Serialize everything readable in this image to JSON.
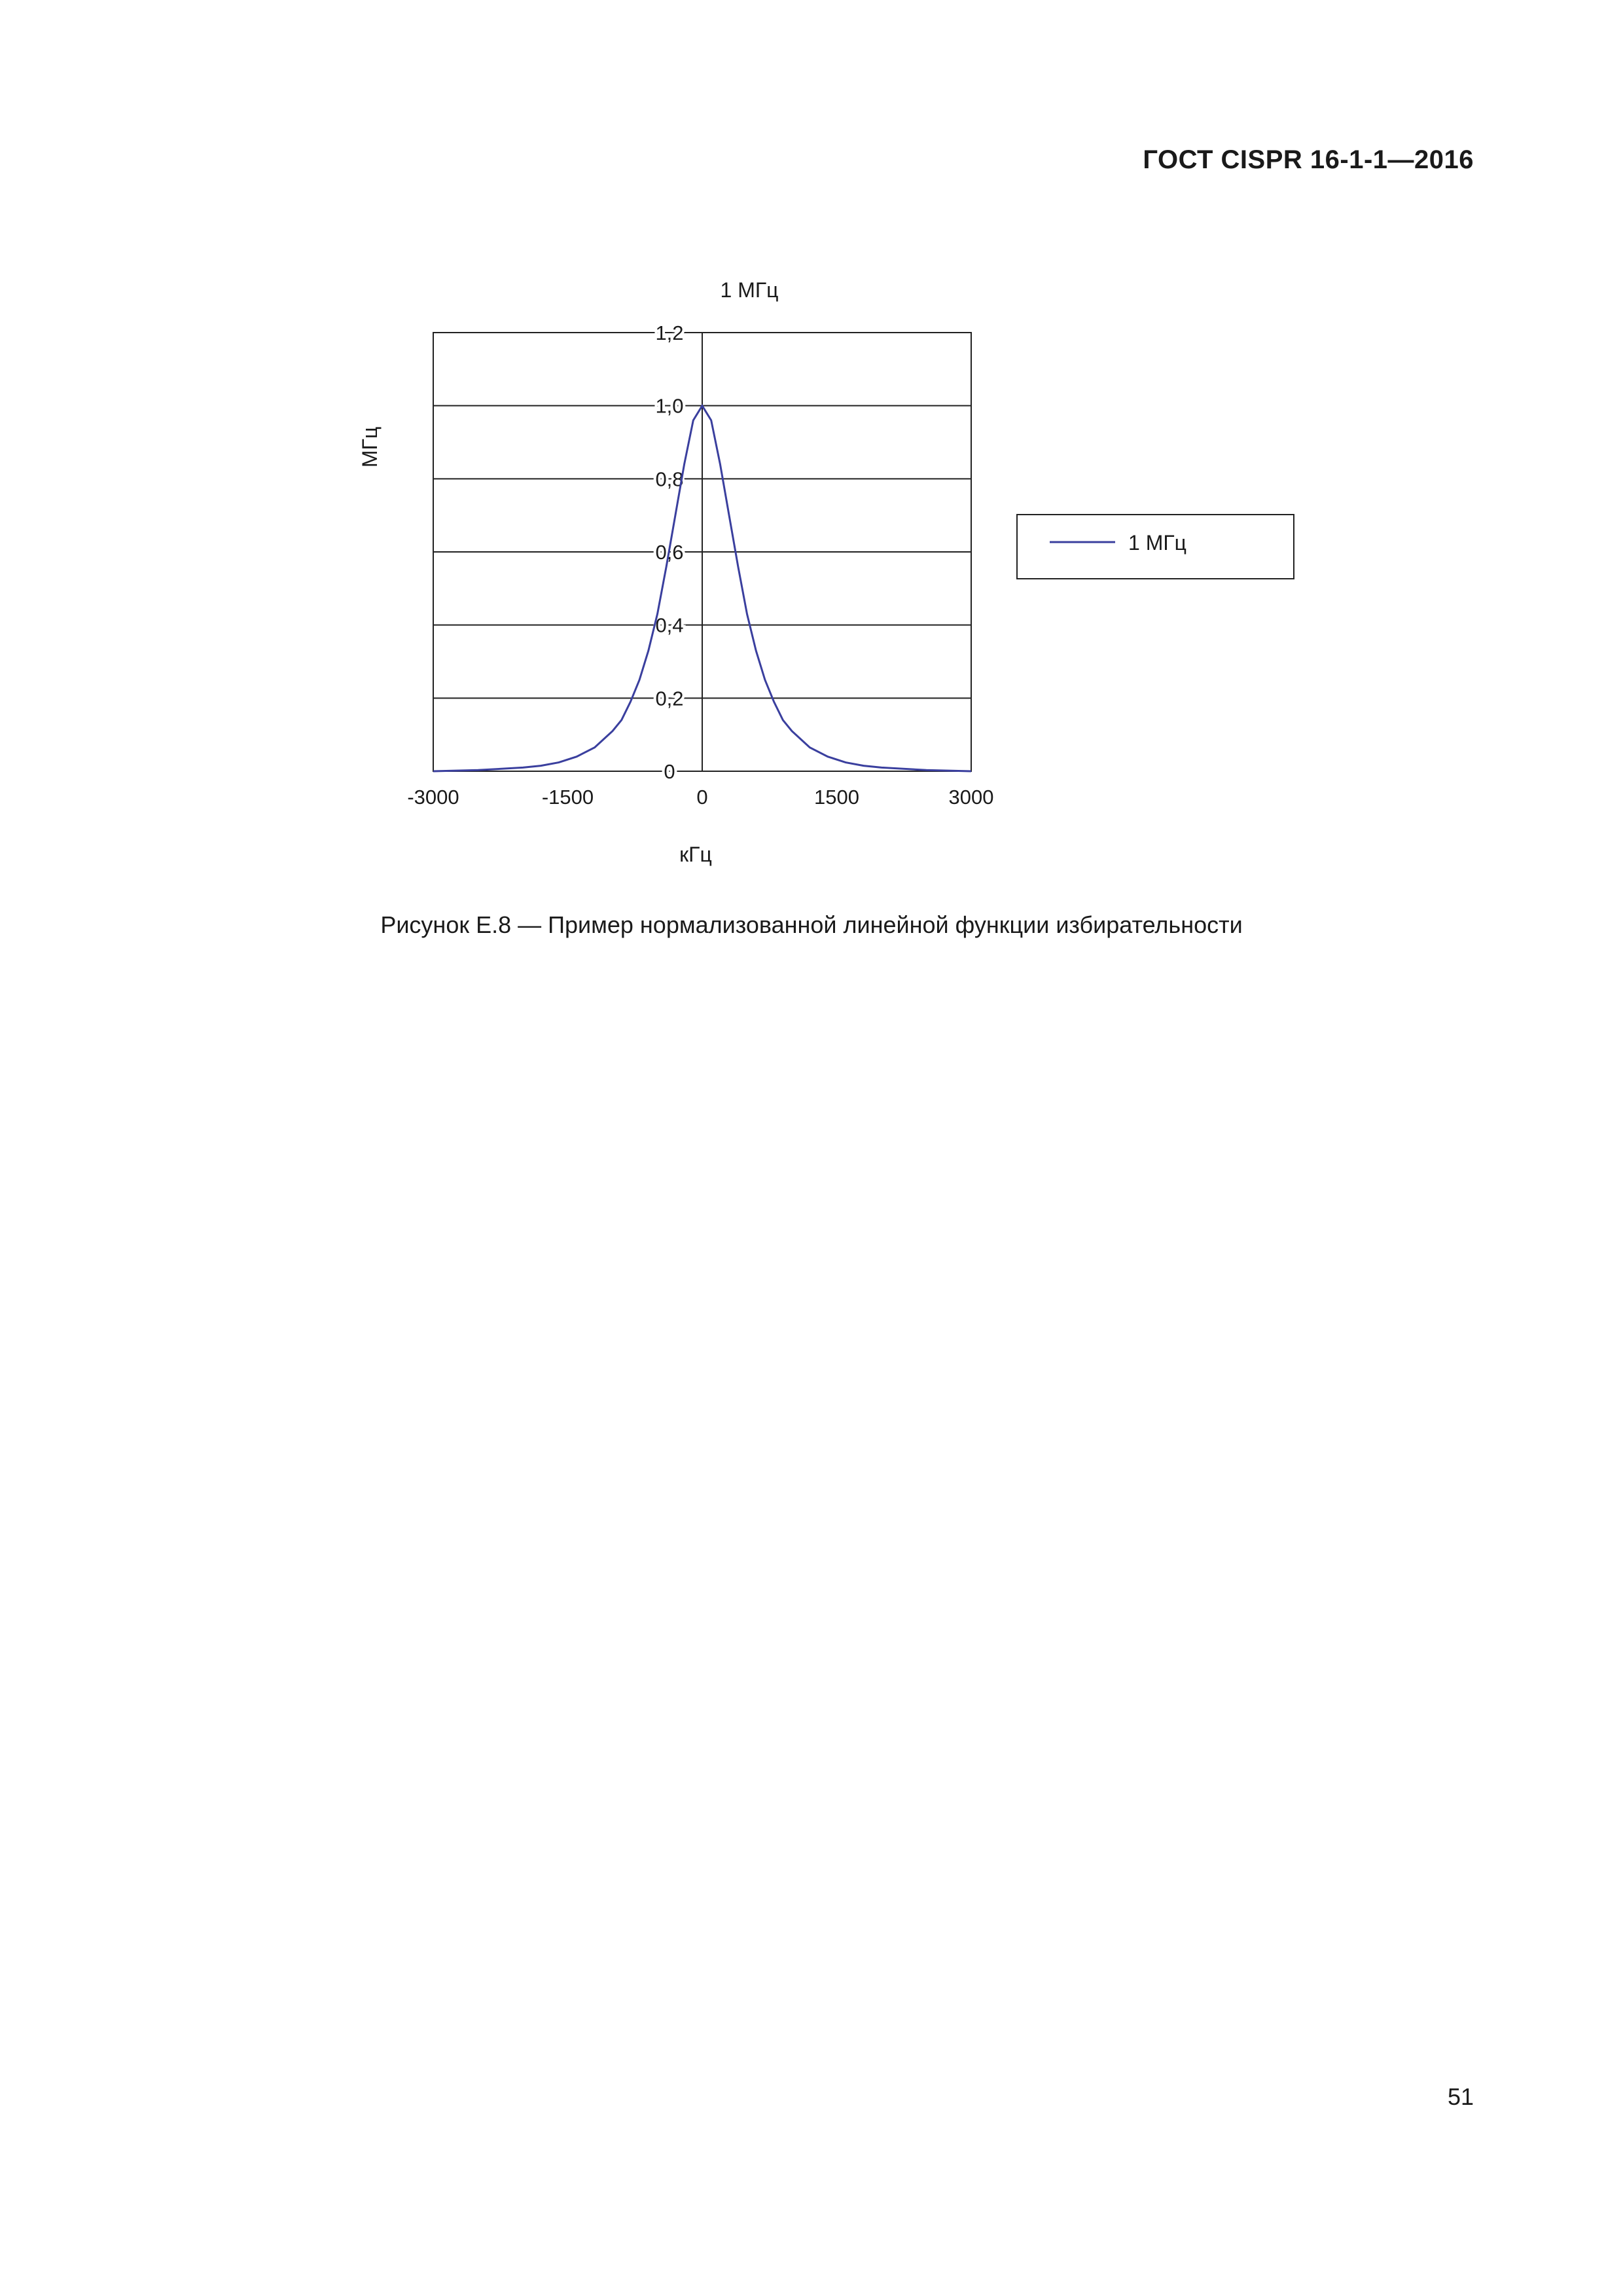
{
  "document": {
    "header": "ГОСТ CISPR 16-1-1—2016",
    "caption": "Рисунок Е.8 — Пример нормализованной линейной функции избирательности",
    "page_number": "51"
  },
  "chart_data": {
    "type": "line",
    "title": "1 МГц",
    "xlabel": "кГц",
    "ylabel": "МГц",
    "xlim": [
      -3000,
      3000
    ],
    "ylim": [
      0,
      1.2
    ],
    "x_ticks": [
      "-3000",
      "-1500",
      "0",
      "1500",
      "3000"
    ],
    "y_ticks": [
      "0",
      "0,2",
      "0,4",
      "0,6",
      "0,8",
      "1,0",
      "1,2"
    ],
    "grid": true,
    "legend_position": "right",
    "series": [
      {
        "name": "1 МГц",
        "color": "#3a3f9e",
        "x": [
          -3000,
          -2500,
          -2000,
          -1800,
          -1600,
          -1400,
          -1200,
          -1000,
          -900,
          -800,
          -700,
          -600,
          -500,
          -400,
          -300,
          -200,
          -100,
          0,
          100,
          200,
          300,
          400,
          500,
          600,
          700,
          800,
          900,
          1000,
          1200,
          1400,
          1600,
          1800,
          2000,
          2500,
          3000
        ],
        "y": [
          0.0,
          0.003,
          0.01,
          0.015,
          0.024,
          0.04,
          0.065,
          0.11,
          0.14,
          0.19,
          0.25,
          0.33,
          0.43,
          0.56,
          0.7,
          0.84,
          0.96,
          1.0,
          0.96,
          0.84,
          0.7,
          0.56,
          0.43,
          0.33,
          0.25,
          0.19,
          0.14,
          0.11,
          0.065,
          0.04,
          0.024,
          0.015,
          0.01,
          0.003,
          0.0
        ]
      }
    ]
  }
}
